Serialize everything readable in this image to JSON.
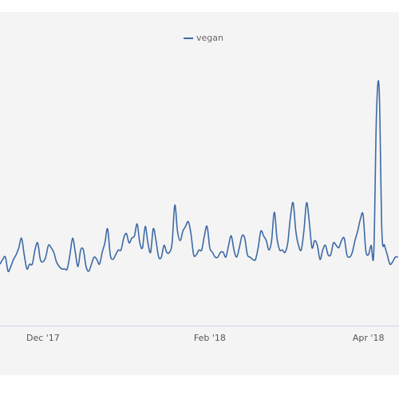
{
  "chart_data": {
    "type": "line",
    "categories": [
      null,
      null,
      null,
      null,
      null,
      null,
      null,
      null,
      null,
      null,
      null,
      null,
      null,
      null,
      null,
      null,
      "Dec '17",
      null,
      null,
      null,
      null,
      null,
      null,
      null,
      null,
      null,
      null,
      null,
      null,
      null,
      null,
      null,
      null,
      null,
      null,
      null,
      null,
      null,
      null,
      null,
      null,
      null,
      null,
      null,
      null,
      null,
      null,
      null,
      null,
      null,
      null,
      null,
      null,
      null,
      null,
      null,
      null,
      null,
      null,
      null,
      null,
      null,
      null,
      null,
      null,
      null,
      null,
      null,
      null,
      null,
      null,
      null,
      null,
      null,
      null,
      null,
      null,
      null,
      "Feb '18",
      null,
      null,
      null,
      null,
      null,
      null,
      null,
      null,
      null,
      null,
      null,
      null,
      null,
      null,
      null,
      null,
      null,
      null,
      null,
      null,
      null,
      null,
      null,
      null,
      null,
      null,
      null,
      null,
      null,
      null,
      null,
      null,
      null,
      null,
      null,
      null,
      null,
      null,
      null,
      null,
      null,
      null,
      null,
      null,
      null,
      null,
      null,
      null,
      null,
      null,
      null,
      null,
      null,
      null,
      null,
      null,
      null,
      null,
      "Apr '18",
      null,
      null,
      null,
      null,
      null,
      null,
      null,
      null,
      null,
      null,
      null
    ],
    "series": [
      {
        "name": "vegan",
        "color": "#3d6aa6",
        "values": [
          26,
          28,
          29,
          23,
          25,
          28,
          30,
          33,
          37,
          30,
          24,
          26,
          26,
          32,
          35,
          28,
          27,
          29,
          34,
          33,
          31,
          27,
          25,
          24,
          24,
          24,
          30,
          37,
          31,
          25,
          32,
          32,
          25,
          23,
          26,
          29,
          28,
          26,
          31,
          35,
          41,
          30,
          28,
          30,
          32,
          32,
          37,
          39,
          35,
          37,
          38,
          43,
          35,
          33,
          42,
          35,
          31,
          41,
          36,
          29,
          29,
          34,
          31,
          31,
          35,
          51,
          40,
          36,
          40,
          42,
          44,
          39,
          30,
          30,
          32,
          32,
          38,
          42,
          33,
          31,
          29,
          29,
          31,
          31,
          29,
          34,
          38,
          32,
          29,
          33,
          38,
          37,
          30,
          29,
          28,
          28,
          33,
          40,
          38,
          36,
          32,
          36,
          48,
          37,
          32,
          32,
          31,
          35,
          46,
          52,
          40,
          34,
          32,
          40,
          52,
          44,
          33,
          36,
          34,
          28,
          32,
          34,
          30,
          30,
          35,
          34,
          33,
          36,
          37,
          30,
          29,
          31,
          36,
          40,
          45,
          47,
          32,
          30,
          34,
          31,
          90,
          100,
          40,
          34,
          30,
          26,
          27,
          29,
          29
        ]
      }
    ],
    "ylim": [
      0,
      100
    ],
    "legend": "top"
  }
}
